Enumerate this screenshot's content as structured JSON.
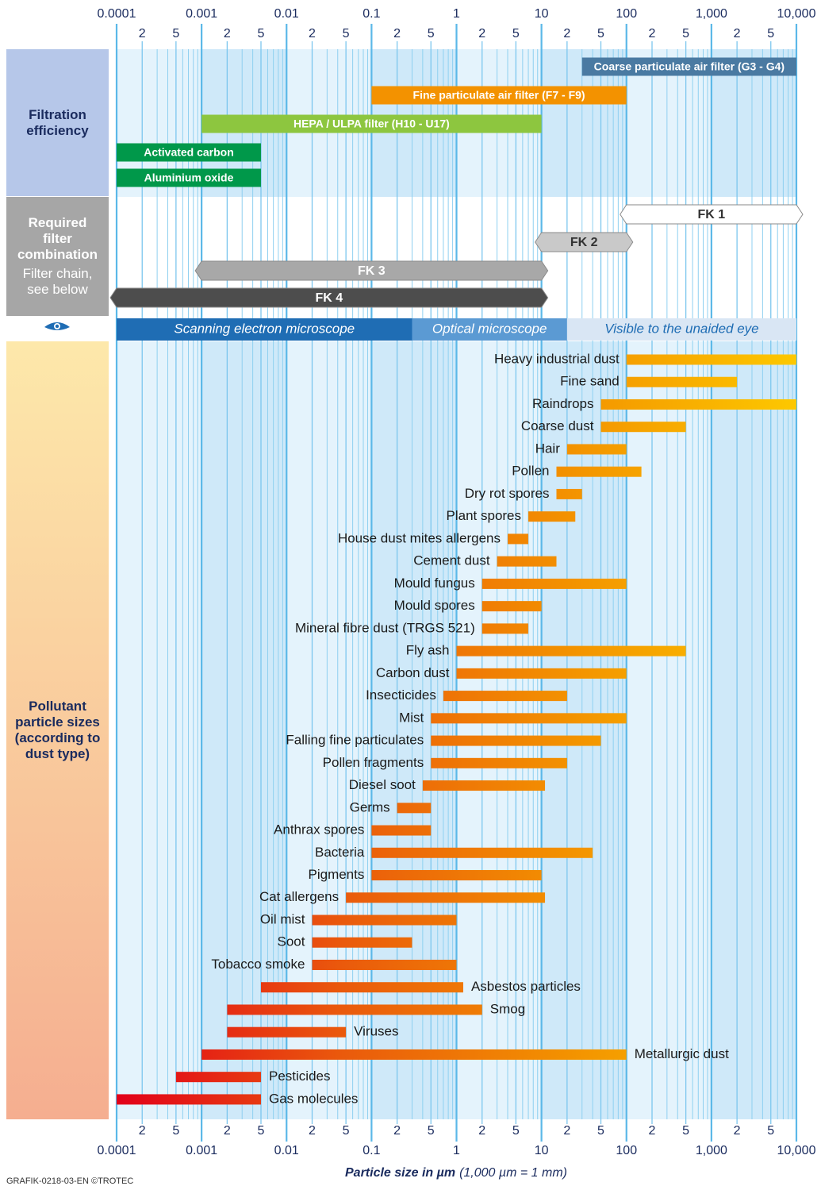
{
  "chart_data": {
    "type": "range_bar",
    "xscale": "log",
    "xlim": [
      0.0001,
      10000
    ],
    "xticks": [
      0.0001,
      0.001,
      0.01,
      0.1,
      1,
      10,
      100,
      {
        "value": 1000,
        "label": "1,000"
      },
      {
        "value": 10000,
        "label": "10,000"
      }
    ],
    "xsubticks": [
      {
        "value": 0.0002,
        "label": "2"
      },
      {
        "value": 0.0005,
        "label": "5"
      },
      {
        "value": 0.002,
        "label": "2"
      },
      {
        "value": 0.005,
        "label": "5"
      },
      {
        "value": 0.02,
        "label": "2"
      },
      {
        "value": 0.05,
        "label": "5"
      },
      {
        "value": 0.2,
        "label": "2"
      },
      {
        "value": 0.5,
        "label": "5"
      },
      {
        "value": 2,
        "label": "2"
      },
      {
        "value": 5,
        "label": "5"
      },
      {
        "value": 20,
        "label": "2"
      },
      {
        "value": 50,
        "label": "5"
      },
      {
        "value": 200,
        "label": "2"
      },
      {
        "value": 500,
        "label": "5"
      },
      {
        "value": 2000,
        "label": "2"
      },
      {
        "value": 5000,
        "label": "5"
      }
    ],
    "xgrid_minor": [
      0.0003,
      0.0004,
      0.0006,
      0.0007,
      0.0008,
      0.0009,
      0.003,
      0.004,
      0.006,
      0.007,
      0.008,
      0.009,
      0.03,
      0.04,
      0.06,
      0.07,
      0.08,
      0.09,
      0.3,
      0.4,
      0.6,
      0.7,
      0.8,
      0.9,
      3,
      4,
      6,
      7,
      8,
      9,
      30,
      40,
      60,
      70,
      80,
      90,
      300,
      400,
      600,
      700,
      800,
      900,
      3000,
      4000,
      6000,
      7000,
      8000,
      9000
    ],
    "grid": true,
    "xlabel": "Particle size in µm",
    "xlabel_note": "(1,000 µm = 1 mm)",
    "filtration": {
      "title": "Filtration efficiency",
      "bars": [
        {
          "name": "Coarse particulate air filter (G3 - G4)",
          "start": 30,
          "end": 10000,
          "color": "#4a7aa2"
        },
        {
          "name": "Fine particulate air filter (F7 - F9)",
          "start": 0.1,
          "end": 100,
          "color": "#f39200"
        },
        {
          "name": "HEPA / ULPA filter (H10 - U17)",
          "start": 0.001,
          "end": 10,
          "color": "#8dc63f"
        },
        {
          "name": "Activated carbon",
          "start": 0.0001,
          "end": 0.005,
          "color": "#00984a"
        },
        {
          "name": "Aluminium oxide",
          "start": 0.0001,
          "end": 0.005,
          "color": "#00984a"
        }
      ]
    },
    "filter_combination": {
      "title": "Required filter combination",
      "note": "Filter chain, see below",
      "chains": [
        {
          "name": "FK 1",
          "start": 100,
          "end": 10000,
          "color": "#ffffff",
          "text_color": "#333333"
        },
        {
          "name": "FK 2",
          "start": 10,
          "end": 100,
          "color": "#c9c9c9",
          "text_color": "#333333"
        },
        {
          "name": "FK 3",
          "start": 0.001,
          "end": 10,
          "color": "#a8a8a8",
          "text_color": "#ffffff"
        },
        {
          "name": "FK 4",
          "start": 0.0001,
          "end": 10,
          "color": "#4d4d4d",
          "text_color": "#ffffff"
        }
      ]
    },
    "visibility": [
      {
        "name": "Scanning electron microscope",
        "start": 0.0001,
        "end": 0.3,
        "color": "#1f6db4",
        "text_color": "#ffffff"
      },
      {
        "name": "Optical microscope",
        "start": 0.3,
        "end": 20,
        "color": "#5b9ad3",
        "text_color": "#ffffff"
      },
      {
        "name": "Visible to the unaided eye",
        "start": 20,
        "end": 10000,
        "color": "#d9e6f4",
        "text_color": "#1f6db4"
      }
    ],
    "pollutants": {
      "title": "Pollutant particle sizes (according to dust type)",
      "categories": [
        "Heavy industrial dust",
        "Fine sand",
        "Raindrops",
        "Coarse dust",
        "Hair",
        "Pollen",
        "Dry rot spores",
        "Plant spores",
        "House dust mites allergens",
        "Cement dust",
        "Mould fungus",
        "Mould spores",
        "Mineral fibre dust (TRGS 521)",
        "Fly ash",
        "Carbon dust",
        "Insecticides",
        "Mist",
        "Falling fine particulates",
        "Pollen fragments",
        "Diesel soot",
        "Germs",
        "Anthrax spores",
        "Bacteria",
        "Pigments",
        "Cat allergens",
        "Oil mist",
        "Soot",
        "Tobacco smoke",
        "Asbestos particles",
        "Smog",
        "Viruses",
        "Metallurgic dust",
        "Pesticides",
        "Gas molecules"
      ],
      "values": [
        [
          100,
          10000
        ],
        [
          100,
          2000
        ],
        [
          50,
          10000
        ],
        [
          50,
          500
        ],
        [
          20,
          100
        ],
        [
          15,
          150
        ],
        [
          15,
          30
        ],
        [
          7,
          25
        ],
        [
          4,
          7
        ],
        [
          3,
          15
        ],
        [
          2,
          100
        ],
        [
          2,
          10
        ],
        [
          2,
          7
        ],
        [
          1,
          500
        ],
        [
          1,
          100
        ],
        [
          0.7,
          20
        ],
        [
          0.5,
          100
        ],
        [
          0.5,
          50
        ],
        [
          0.5,
          20
        ],
        [
          0.4,
          11
        ],
        [
          0.2,
          0.5
        ],
        [
          0.1,
          0.5
        ],
        [
          0.1,
          40
        ],
        [
          0.1,
          10
        ],
        [
          0.05,
          11
        ],
        [
          0.02,
          1
        ],
        [
          0.02,
          0.3
        ],
        [
          0.02,
          1
        ],
        [
          0.005,
          1.2
        ],
        [
          0.002,
          2
        ],
        [
          0.002,
          0.05
        ],
        [
          0.001,
          100
        ],
        [
          0.0005,
          0.005
        ],
        [
          0.0001,
          0.005
        ]
      ],
      "label_side": [
        "left",
        "left",
        "left",
        "left",
        "left",
        "left",
        "left",
        "left",
        "left",
        "left",
        "left",
        "left",
        "left",
        "left",
        "left",
        "left",
        "left",
        "left",
        "left",
        "left",
        "left",
        "left",
        "left",
        "left",
        "left",
        "left",
        "left",
        "left",
        "right",
        "right",
        "right",
        "right",
        "right",
        "right"
      ],
      "gradient_colors": [
        "#e2001a",
        "#ea5a0c",
        "#f39200",
        "#fdc800"
      ]
    }
  },
  "footer": "GRAFIK-0218-03-EN ©TROTEC"
}
